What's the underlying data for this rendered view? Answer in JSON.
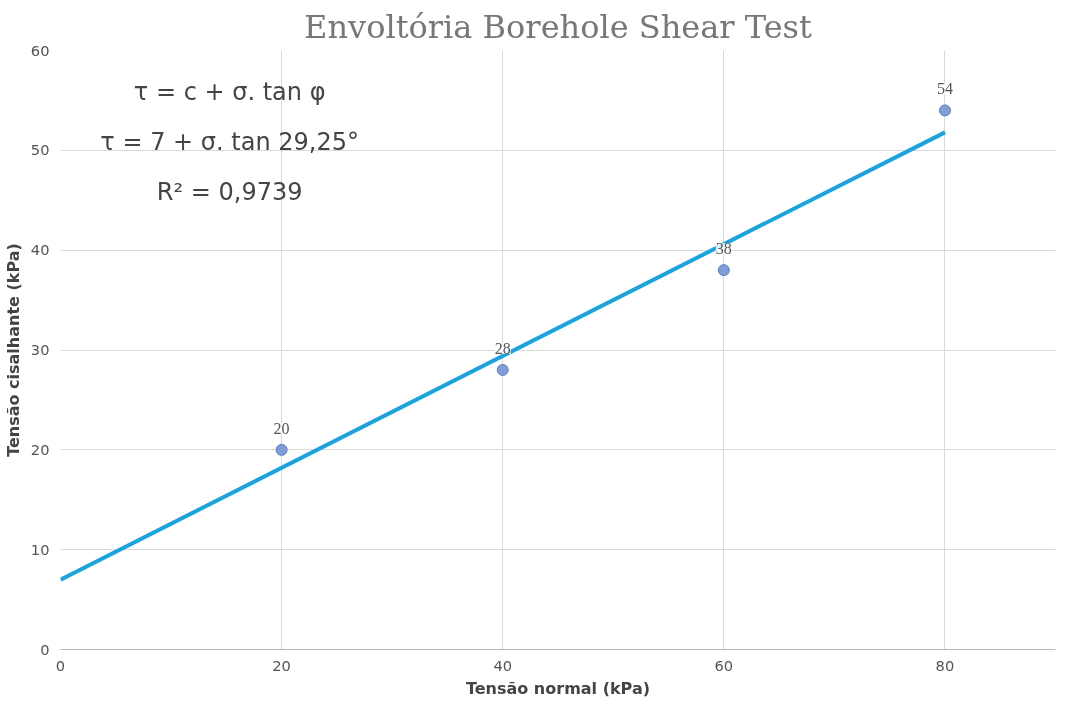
{
  "chart_data": {
    "type": "scatter",
    "title": "Envoltória Borehole Shear Test",
    "xlabel": "Tensão normal (kPa)",
    "ylabel": "Tensão cisalhante (kPa)",
    "x": [
      20,
      40,
      60,
      80
    ],
    "series": [
      {
        "color": "#7f9ed8",
        "values": [
          20,
          28,
          38,
          54
        ],
        "marker": "circle",
        "data_labels": true
      },
      {
        "type": "line",
        "color": "#1aa3df",
        "x": [
          0,
          80
        ],
        "values": [
          7,
          51.8
        ],
        "line_style": "solid"
      }
    ],
    "xlim": [
      0,
      90
    ],
    "xticks": [
      0,
      20,
      40,
      60,
      80
    ],
    "ylim": [
      0,
      60
    ],
    "yticks": [
      0,
      10,
      20,
      30,
      40,
      50,
      60
    ],
    "grid": true,
    "annotations": [
      "τ = c + σ. tan φ",
      "τ = 7 + σ. tan 29,25°",
      "R² = 0,9739"
    ]
  }
}
